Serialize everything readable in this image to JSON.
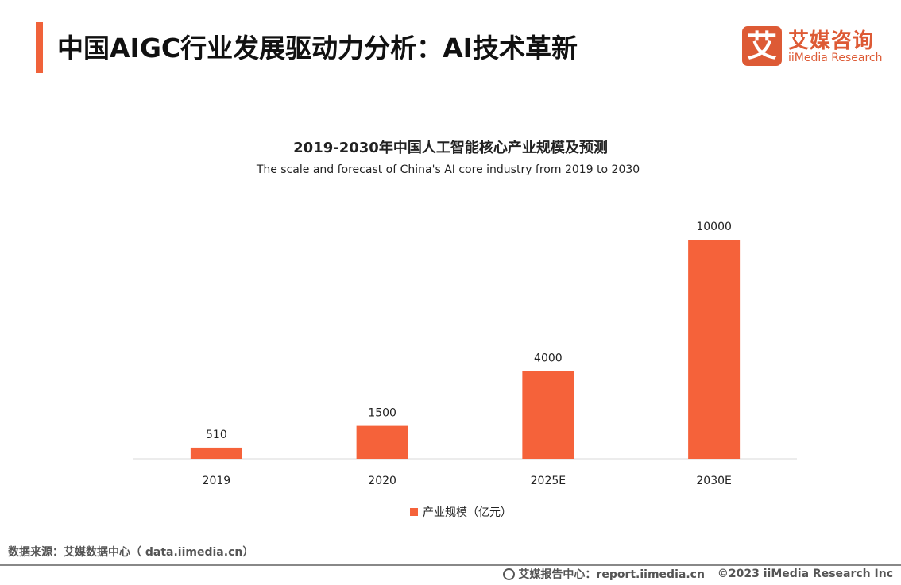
{
  "header": {
    "title": "中国AIGC行业发展驱动力分析：AI技术革新"
  },
  "logo": {
    "mark": "艾",
    "cn": "艾媒咨询",
    "en": "iiMedia Research"
  },
  "colors": {
    "accent": "#f0623a",
    "bar": "#f5623a",
    "brand": "#dd5a35"
  },
  "chart_data": {
    "type": "bar",
    "title": "2019-2030年中国人工智能核心产业规模及预测",
    "subtitle": "The scale and forecast of China's AI core industry from 2019 to 2030",
    "categories": [
      "2019",
      "2020",
      "2025E",
      "2030E"
    ],
    "series": [
      {
        "name": "产业规模（亿元）",
        "values": [
          510,
          1500,
          4000,
          10000
        ]
      }
    ],
    "ylim": [
      0,
      10000
    ],
    "grid": false,
    "legend": "bottom"
  },
  "footer": {
    "source": "数据来源：艾媒数据中心（ data.iimedia.cn）",
    "report": "艾媒报告中心：report.iimedia.cn",
    "copyright": "©2023  iiMedia Research  Inc"
  }
}
